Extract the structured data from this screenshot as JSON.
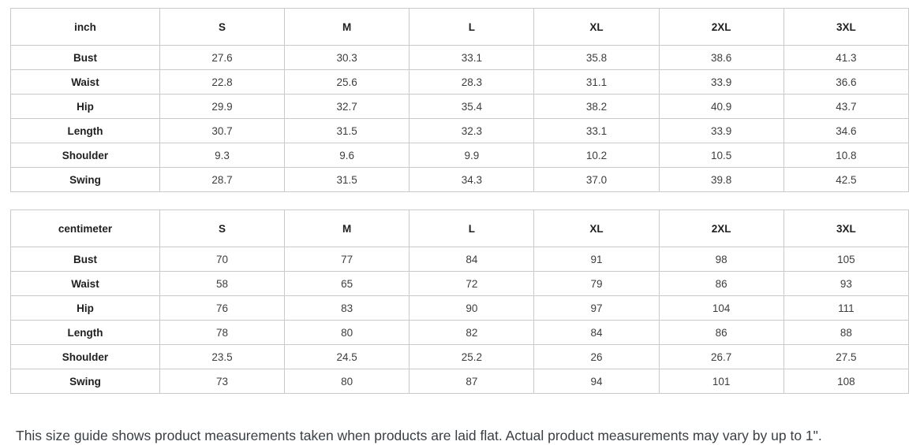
{
  "chart_data": [
    {
      "type": "table",
      "unit_label": "inch",
      "columns": [
        "S",
        "M",
        "L",
        "XL",
        "2XL",
        "3XL"
      ],
      "rows": [
        {
          "label": "Bust",
          "values": [
            "27.6",
            "30.3",
            "33.1",
            "35.8",
            "38.6",
            "41.3"
          ]
        },
        {
          "label": "Waist",
          "values": [
            "22.8",
            "25.6",
            "28.3",
            "31.1",
            "33.9",
            "36.6"
          ]
        },
        {
          "label": "Hip",
          "values": [
            "29.9",
            "32.7",
            "35.4",
            "38.2",
            "40.9",
            "43.7"
          ]
        },
        {
          "label": "Length",
          "values": [
            "30.7",
            "31.5",
            "32.3",
            "33.1",
            "33.9",
            "34.6"
          ]
        },
        {
          "label": "Shoulder",
          "values": [
            "9.3",
            "9.6",
            "9.9",
            "10.2",
            "10.5",
            "10.8"
          ]
        },
        {
          "label": "Swing",
          "values": [
            "28.7",
            "31.5",
            "34.3",
            "37.0",
            "39.8",
            "42.5"
          ]
        }
      ]
    },
    {
      "type": "table",
      "unit_label": "centimeter",
      "columns": [
        "S",
        "M",
        "L",
        "XL",
        "2XL",
        "3XL"
      ],
      "rows": [
        {
          "label": "Bust",
          "values": [
            "70",
            "77",
            "84",
            "91",
            "98",
            "105"
          ]
        },
        {
          "label": "Waist",
          "values": [
            "58",
            "65",
            "72",
            "79",
            "86",
            "93"
          ]
        },
        {
          "label": "Hip",
          "values": [
            "76",
            "83",
            "90",
            "97",
            "104",
            "111"
          ]
        },
        {
          "label": "Length",
          "values": [
            "78",
            "80",
            "82",
            "84",
            "86",
            "88"
          ]
        },
        {
          "label": "Shoulder",
          "values": [
            "23.5",
            "24.5",
            "25.2",
            "26",
            "26.7",
            "27.5"
          ]
        },
        {
          "label": "Swing",
          "values": [
            "73",
            "80",
            "87",
            "94",
            "101",
            "108"
          ]
        }
      ]
    }
  ],
  "note": {
    "text": "This size guide shows product measurements taken when products are laid flat. Actual product measurements may vary by up to 1\"."
  },
  "colors": {
    "border": "#c9c9c9",
    "header_text": "#1f1f1f",
    "value_text": "#3d3d3d",
    "note_text": "#3a3f44",
    "background": "#ffffff"
  },
  "layout": {
    "label_column_width_pct": 16.6
  }
}
